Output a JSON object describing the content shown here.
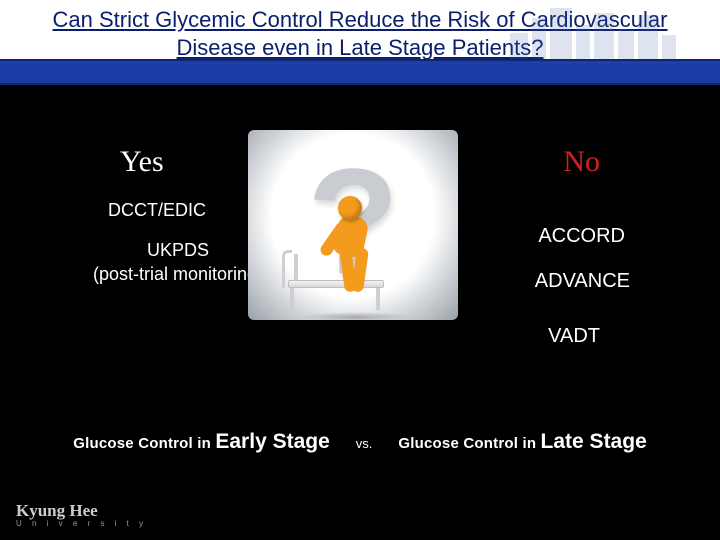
{
  "title": "Can Strict Glycemic Control Reduce the Risk of Cardiovascular Disease even in Late Stage Patients?",
  "yes": {
    "label": "Yes",
    "items": [
      "DCCT/EDIC",
      "UKPDS\n(post-trial monitoring)"
    ]
  },
  "no": {
    "label": "No",
    "items": [
      "ACCORD",
      "ADVANCE",
      "VADT"
    ]
  },
  "compare": {
    "left_prefix": "Glucose Control in ",
    "left_stage": "Early Stage",
    "vs": "vs.",
    "right_prefix": "Glucose Control in ",
    "right_stage": "Late Stage"
  },
  "footer": {
    "name": "Kyung Hee",
    "sub": "U n i v e r s i t y"
  },
  "colors": {
    "background": "#000000",
    "title_text": "#0b1e6e",
    "band": "#1d3ea8",
    "yes_text": "#ffffff",
    "no_text": "#d22020",
    "body_text": "#ffffff",
    "figure": "#f49b1d",
    "qmark": "#c9ccd1"
  },
  "illustration": {
    "description": "question-mark-with-seated-figure-on-bed",
    "qmark": "?"
  }
}
